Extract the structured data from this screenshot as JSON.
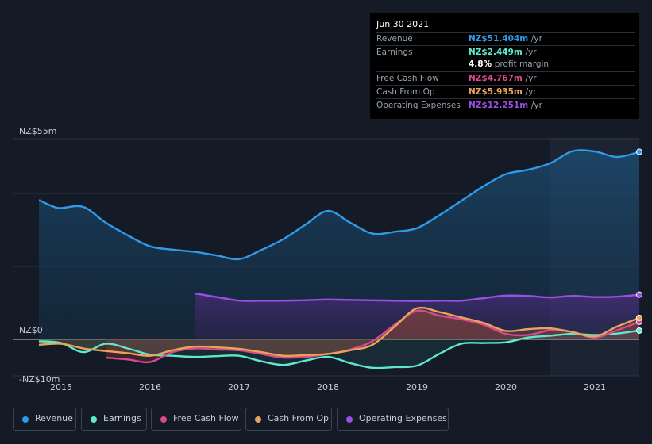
{
  "tooltip": {
    "date": "Jun 30 2021",
    "rows": [
      {
        "label": "Revenue",
        "value": "NZ$51.404m",
        "unit": "/yr",
        "color": "#2f9be8"
      },
      {
        "label": "Earnings",
        "value": "NZ$2.449m",
        "unit": "/yr",
        "color": "#5ee8cf"
      },
      {
        "label": "",
        "value": "4.8%",
        "unit": "profit margin",
        "color": "#ffffff"
      },
      {
        "label": "Free Cash Flow",
        "value": "NZ$4.767m",
        "unit": "/yr",
        "color": "#d9498b"
      },
      {
        "label": "Cash From Op",
        "value": "NZ$5.935m",
        "unit": "/yr",
        "color": "#e8a55a"
      },
      {
        "label": "Operating Expenses",
        "value": "NZ$12.251m",
        "unit": "/yr",
        "color": "#9a4fe6"
      }
    ]
  },
  "legend": [
    {
      "label": "Revenue",
      "color": "#2f9be8"
    },
    {
      "label": "Earnings",
      "color": "#5ee8cf"
    },
    {
      "label": "Free Cash Flow",
      "color": "#d9498b"
    },
    {
      "label": "Cash From Op",
      "color": "#e8a55a"
    },
    {
      "label": "Operating Expenses",
      "color": "#9a4fe6"
    }
  ],
  "chart_data": {
    "type": "area",
    "title": "",
    "xlabel": "",
    "ylabel": "",
    "ylim": [
      -10,
      55
    ],
    "y_tick_labels": [
      "NZ$55m",
      "NZ$0",
      "-NZ$10m"
    ],
    "x_tick_labels": [
      "2015",
      "2016",
      "2017",
      "2018",
      "2019",
      "2020",
      "2021"
    ],
    "highlight_from": 2020.5,
    "series": [
      {
        "name": "Revenue",
        "color": "#2f9be8",
        "x": [
          2014.75,
          2014.92,
          2015.0,
          2015.25,
          2015.5,
          2015.75,
          2016.0,
          2016.25,
          2016.5,
          2016.75,
          2017.0,
          2017.25,
          2017.5,
          2017.75,
          2018.0,
          2018.25,
          2018.5,
          2018.75,
          2019.0,
          2019.25,
          2019.5,
          2019.75,
          2020.0,
          2020.25,
          2020.5,
          2020.75,
          2021.0,
          2021.25,
          2021.5
        ],
        "y": [
          38.2,
          36.3,
          36.0,
          36.3,
          32.0,
          28.5,
          25.5,
          24.6,
          24.0,
          23.0,
          22.0,
          24.5,
          27.5,
          31.5,
          35.2,
          32.0,
          29.0,
          29.5,
          30.5,
          34.0,
          38.0,
          42.0,
          45.3,
          46.5,
          48.3,
          51.6,
          51.5,
          50.0,
          51.4
        ]
      },
      {
        "name": "Earnings",
        "color": "#5ee8cf",
        "x": [
          2014.75,
          2015.0,
          2015.25,
          2015.5,
          2015.75,
          2016.0,
          2016.25,
          2016.5,
          2016.75,
          2017.0,
          2017.25,
          2017.5,
          2017.75,
          2018.0,
          2018.25,
          2018.5,
          2018.75,
          2019.0,
          2019.25,
          2019.5,
          2019.75,
          2020.0,
          2020.25,
          2020.5,
          2020.75,
          2021.0,
          2021.25,
          2021.5
        ],
        "y": [
          -0.5,
          -1.0,
          -3.5,
          -1.2,
          -2.5,
          -4.2,
          -4.5,
          -4.8,
          -4.6,
          -4.5,
          -6.0,
          -7.0,
          -5.8,
          -4.8,
          -6.5,
          -7.8,
          -7.6,
          -7.2,
          -4.0,
          -1.2,
          -1.0,
          -0.8,
          0.5,
          1.0,
          1.5,
          1.2,
          1.6,
          2.4
        ]
      },
      {
        "name": "Free Cash Flow",
        "color": "#d9498b",
        "x": [
          2015.5,
          2015.75,
          2016.0,
          2016.25,
          2016.5,
          2016.75,
          2017.0,
          2017.25,
          2017.5,
          2017.75,
          2018.0,
          2018.25,
          2018.5,
          2018.75,
          2019.0,
          2019.25,
          2019.5,
          2019.75,
          2020.0,
          2020.25,
          2020.5,
          2020.75,
          2021.0,
          2021.25,
          2021.5
        ],
        "y": [
          -5.0,
          -5.5,
          -6.2,
          -3.5,
          -2.5,
          -2.8,
          -3.0,
          -4.0,
          -5.0,
          -4.8,
          -4.0,
          -2.8,
          -0.5,
          4.0,
          7.8,
          6.5,
          5.5,
          4.0,
          1.5,
          1.2,
          2.5,
          2.0,
          0.5,
          2.5,
          4.8
        ]
      },
      {
        "name": "Cash From Op",
        "color": "#e8a55a",
        "x": [
          2014.75,
          2015.0,
          2015.25,
          2015.5,
          2015.75,
          2016.0,
          2016.25,
          2016.5,
          2016.75,
          2017.0,
          2017.25,
          2017.5,
          2017.75,
          2018.0,
          2018.25,
          2018.5,
          2018.75,
          2019.0,
          2019.25,
          2019.5,
          2019.75,
          2020.0,
          2020.25,
          2020.5,
          2020.75,
          2021.0,
          2021.25,
          2021.5
        ],
        "y": [
          -1.5,
          -1.2,
          -2.5,
          -3.2,
          -3.8,
          -4.5,
          -3.0,
          -2.0,
          -2.2,
          -2.6,
          -3.5,
          -4.5,
          -4.3,
          -4.0,
          -3.0,
          -1.5,
          3.5,
          8.5,
          7.5,
          6.0,
          4.5,
          2.3,
          2.8,
          3.0,
          2.0,
          0.8,
          3.5,
          5.9
        ]
      },
      {
        "name": "Operating Expenses",
        "color": "#9a4fe6",
        "x": [
          2016.5,
          2016.75,
          2017.0,
          2017.25,
          2017.5,
          2017.75,
          2018.0,
          2018.25,
          2018.5,
          2018.75,
          2019.0,
          2019.25,
          2019.5,
          2019.75,
          2020.0,
          2020.25,
          2020.5,
          2020.75,
          2021.0,
          2021.25,
          2021.5
        ],
        "y": [
          12.6,
          11.6,
          10.6,
          10.6,
          10.6,
          10.7,
          10.9,
          10.8,
          10.7,
          10.6,
          10.5,
          10.6,
          10.6,
          11.3,
          12.0,
          11.9,
          11.5,
          11.9,
          11.6,
          11.7,
          12.25
        ]
      }
    ]
  }
}
